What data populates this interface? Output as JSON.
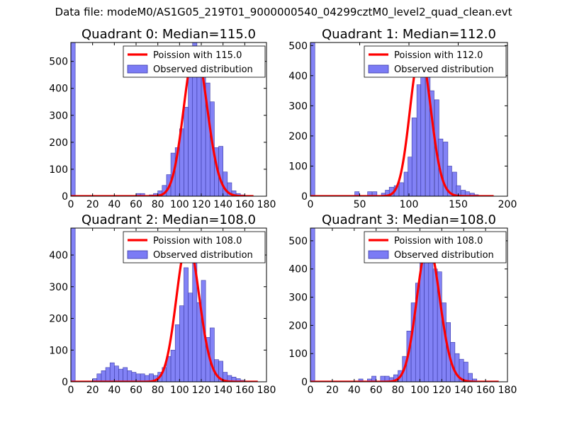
{
  "suptitle": "Data file: modeM0/AS1G05_219T01_9000000540_04299cztM0_level2_quad_clean.evt",
  "colors": {
    "hist": "#7b7bf5",
    "hist_edge": "#3a3aa6",
    "poisson": "#ff0000"
  },
  "chart_data": [
    {
      "type": "bar",
      "title": "Quadrant 0: Median=115.0",
      "median": 115.0,
      "legend": {
        "location": "top-right",
        "entries": [
          "Poission with 115.0",
          "Observed distribution"
        ]
      },
      "xlim": [
        0,
        180
      ],
      "ylim": [
        0,
        570
      ],
      "xticks": [
        0,
        20,
        40,
        60,
        80,
        100,
        120,
        140,
        160,
        180
      ],
      "yticks": [
        0,
        100,
        200,
        300,
        400,
        500
      ],
      "bin_width": 4,
      "bins": [
        [
          0,
          570
        ],
        [
          60,
          10
        ],
        [
          64,
          10
        ],
        [
          72,
          5
        ],
        [
          76,
          10
        ],
        [
          80,
          20
        ],
        [
          84,
          40
        ],
        [
          88,
          80
        ],
        [
          92,
          160
        ],
        [
          96,
          180
        ],
        [
          100,
          250
        ],
        [
          104,
          330
        ],
        [
          108,
          450
        ],
        [
          112,
          570
        ],
        [
          116,
          540
        ],
        [
          120,
          470
        ],
        [
          124,
          420
        ],
        [
          128,
          350
        ],
        [
          132,
          180
        ],
        [
          136,
          185
        ],
        [
          140,
          90
        ],
        [
          144,
          50
        ],
        [
          148,
          20
        ],
        [
          152,
          10
        ],
        [
          156,
          5
        ]
      ],
      "poisson_curve": {
        "mean": 115.0,
        "peak": 545,
        "x_range": [
          0,
          168
        ]
      }
    },
    {
      "type": "bar",
      "title": "Quadrant 1: Median=112.0",
      "median": 112.0,
      "legend": {
        "location": "top-right",
        "entries": [
          "Poission with 112.0",
          "Observed distribution"
        ]
      },
      "xlim": [
        0,
        200
      ],
      "ylim": [
        0,
        510
      ],
      "xticks": [
        0,
        50,
        100,
        150,
        200
      ],
      "yticks": [
        0,
        100,
        200,
        300,
        400,
        500
      ],
      "bin_width": 4.5,
      "bins": [
        [
          0,
          510
        ],
        [
          45,
          15
        ],
        [
          58,
          15
        ],
        [
          63,
          15
        ],
        [
          72,
          10
        ],
        [
          76,
          20
        ],
        [
          80,
          30
        ],
        [
          85,
          35
        ],
        [
          90,
          45
        ],
        [
          95,
          80
        ],
        [
          99,
          130
        ],
        [
          103,
          260
        ],
        [
          108,
          370
        ],
        [
          112,
          440
        ],
        [
          117,
          460
        ],
        [
          121,
          350
        ],
        [
          126,
          320
        ],
        [
          130,
          190
        ],
        [
          135,
          180
        ],
        [
          139,
          100
        ],
        [
          144,
          80
        ],
        [
          148,
          35
        ],
        [
          153,
          20
        ],
        [
          157,
          15
        ],
        [
          162,
          10
        ],
        [
          166,
          5
        ]
      ],
      "poisson_curve": {
        "mean": 112.0,
        "peak": 475,
        "x_range": [
          0,
          186
        ]
      }
    },
    {
      "type": "bar",
      "title": "Quadrant 2: Median=108.0",
      "median": 108.0,
      "legend": {
        "location": "top-right",
        "entries": [
          "Poission with 108.0",
          "Observed distribution"
        ]
      },
      "xlim": [
        0,
        180
      ],
      "ylim": [
        0,
        485
      ],
      "xticks": [
        0,
        20,
        40,
        60,
        80,
        100,
        120,
        140,
        160,
        180
      ],
      "yticks": [
        0,
        100,
        200,
        300,
        400
      ],
      "bin_width": 4,
      "bins": [
        [
          0,
          485
        ],
        [
          20,
          10
        ],
        [
          24,
          25
        ],
        [
          28,
          35
        ],
        [
          32,
          45
        ],
        [
          36,
          60
        ],
        [
          40,
          50
        ],
        [
          44,
          40
        ],
        [
          48,
          45
        ],
        [
          52,
          35
        ],
        [
          56,
          30
        ],
        [
          60,
          25
        ],
        [
          64,
          25
        ],
        [
          68,
          20
        ],
        [
          72,
          25
        ],
        [
          76,
          20
        ],
        [
          80,
          30
        ],
        [
          84,
          45
        ],
        [
          88,
          80
        ],
        [
          92,
          100
        ],
        [
          96,
          180
        ],
        [
          100,
          240
        ],
        [
          104,
          360
        ],
        [
          108,
          280
        ],
        [
          112,
          440
        ],
        [
          116,
          250
        ],
        [
          120,
          320
        ],
        [
          124,
          140
        ],
        [
          128,
          170
        ],
        [
          132,
          70
        ],
        [
          136,
          65
        ],
        [
          140,
          30
        ],
        [
          144,
          20
        ],
        [
          148,
          15
        ],
        [
          152,
          10
        ],
        [
          156,
          5
        ]
      ],
      "poisson_curve": {
        "mean": 108.0,
        "peak": 445,
        "x_range": [
          0,
          172
        ]
      }
    },
    {
      "type": "bar",
      "title": "Quadrant 3: Median=108.0",
      "median": 108.0,
      "legend": {
        "location": "top-right",
        "entries": [
          "Poission with 108.0",
          "Observed distribution"
        ]
      },
      "xlim": [
        0,
        180
      ],
      "ylim": [
        0,
        545
      ],
      "xticks": [
        0,
        20,
        40,
        60,
        80,
        100,
        120,
        140,
        160,
        180
      ],
      "yticks": [
        0,
        100,
        200,
        300,
        400,
        500
      ],
      "bin_width": 4,
      "bins": [
        [
          0,
          545
        ],
        [
          44,
          10
        ],
        [
          52,
          10
        ],
        [
          56,
          20
        ],
        [
          64,
          20
        ],
        [
          68,
          20
        ],
        [
          72,
          15
        ],
        [
          76,
          25
        ],
        [
          80,
          40
        ],
        [
          84,
          90
        ],
        [
          88,
          180
        ],
        [
          92,
          280
        ],
        [
          96,
          350
        ],
        [
          100,
          430
        ],
        [
          104,
          460
        ],
        [
          108,
          440
        ],
        [
          112,
          400
        ],
        [
          116,
          390
        ],
        [
          120,
          280
        ],
        [
          124,
          210
        ],
        [
          128,
          140
        ],
        [
          132,
          100
        ],
        [
          136,
          80
        ],
        [
          140,
          70
        ],
        [
          144,
          30
        ],
        [
          148,
          10
        ]
      ],
      "poisson_curve": {
        "mean": 108.0,
        "peak": 490,
        "x_range": [
          0,
          172
        ]
      }
    }
  ]
}
